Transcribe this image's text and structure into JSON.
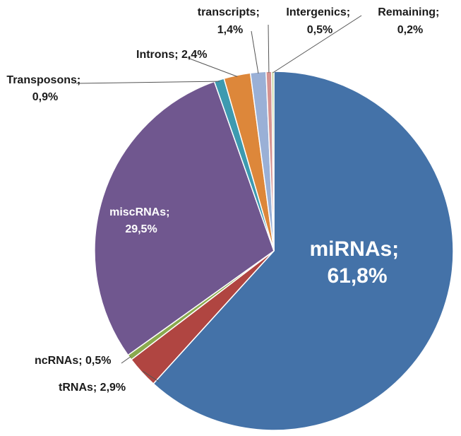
{
  "chart_data": {
    "type": "pie",
    "title": "",
    "start_angle_deg": 0,
    "direction": "clockwise",
    "legend": "none",
    "slices": [
      {
        "name": "miRNAs",
        "value": 61.8,
        "label_line1": "miRNAs;",
        "label_line2": "61,8%",
        "color": "#4472A8"
      },
      {
        "name": "tRNAs",
        "value": 2.9,
        "label_line1": "tRNAs; 2,9%",
        "label_line2": "",
        "color": "#B04541"
      },
      {
        "name": "ncRNAs",
        "value": 0.5,
        "label_line1": "ncRNAs; 0,5%",
        "label_line2": "",
        "color": "#8AAA4E"
      },
      {
        "name": "miscRNAs",
        "value": 29.5,
        "label_line1": "miscRNAs;",
        "label_line2": "29,5%",
        "color": "#70578F"
      },
      {
        "name": "Transposons",
        "value": 0.9,
        "label_line1": "Transposons;",
        "label_line2": "0,9%",
        "color": "#3D9AB0"
      },
      {
        "name": "Introns",
        "value": 2.4,
        "label_line1": "Introns; 2,4%",
        "label_line2": "",
        "color": "#DD873A"
      },
      {
        "name": "transcripts",
        "value": 1.4,
        "label_line1": "transcripts;",
        "label_line2": "1,4%",
        "color": "#9AB0D6"
      },
      {
        "name": "Intergenics",
        "value": 0.5,
        "label_line1": "Intergenics;",
        "label_line2": "0,5%",
        "color": "#D69391"
      },
      {
        "name": "Remaining",
        "value": 0.2,
        "label_line1": "Remaining;",
        "label_line2": "0,2%",
        "color": "#BED093"
      }
    ]
  }
}
